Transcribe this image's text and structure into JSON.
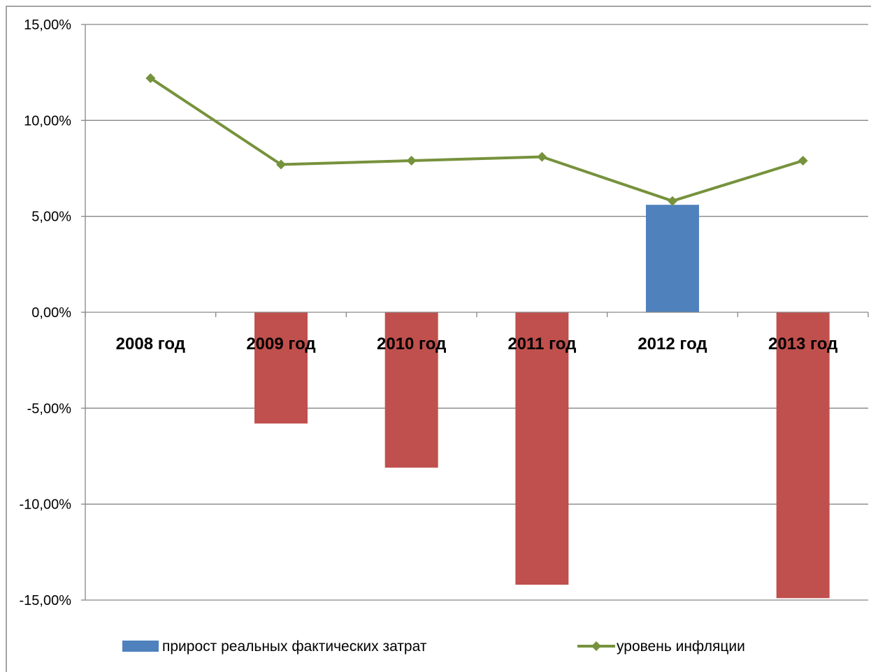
{
  "chart_data": {
    "type": "bar",
    "categories": [
      "2008 год",
      "2009 год",
      "2010 год",
      "2011 год",
      "2012 год",
      "2013 год"
    ],
    "series": [
      {
        "name": "прирост реальных фактических затрат",
        "type": "bar",
        "values": [
          null,
          -5.8,
          -8.1,
          -14.2,
          5.6,
          -14.9
        ],
        "color_positive": "#4F81BD",
        "color_negative": "#C0504D"
      },
      {
        "name": "уровень инфляции",
        "type": "line",
        "values": [
          12.2,
          7.7,
          7.9,
          8.1,
          5.8,
          7.9
        ],
        "color": "#76923C"
      }
    ],
    "ylim": [
      -15,
      15
    ],
    "yticks": [
      15,
      10,
      5,
      0,
      -5,
      -10,
      -15
    ],
    "ytick_labels": [
      "15,00%",
      "10,00%",
      "5,00%",
      "0,00%",
      "-5,00%",
      "-10,00%",
      "-15,00%"
    ],
    "grid": true,
    "legend_position": "bottom"
  }
}
